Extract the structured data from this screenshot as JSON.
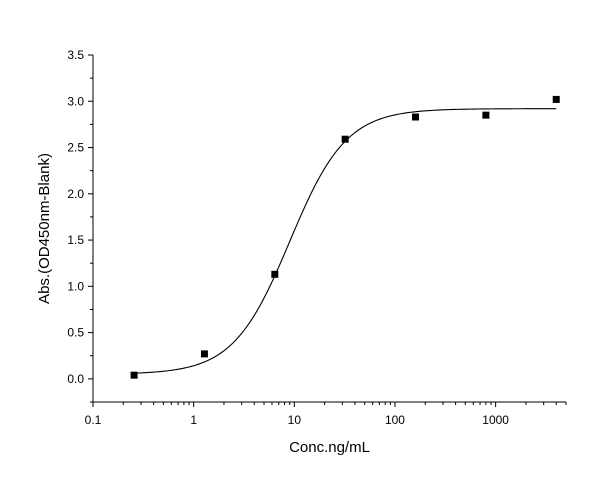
{
  "chart_data": {
    "type": "scatter",
    "title": "",
    "xlabel": "Conc.ng/mL",
    "ylabel": "Abs.(OD450nm-Blank)",
    "x_scale": "log",
    "xlim": [
      0.1,
      5000
    ],
    "ylim": [
      -0.25,
      3.5
    ],
    "x_ticks": [
      0.1,
      1,
      10,
      100,
      1000
    ],
    "x_tick_labels": [
      "0.1",
      "1",
      "10",
      "100",
      "1000"
    ],
    "y_ticks": [
      0.0,
      0.5,
      1.0,
      1.5,
      2.0,
      2.5,
      3.0,
      3.5
    ],
    "y_tick_labels": [
      "0.0",
      "0.5",
      "1.0",
      "1.5",
      "2.0",
      "2.5",
      "3.0",
      "3.5"
    ],
    "grid": false,
    "legend": "none",
    "series": [
      {
        "marker": "square",
        "color": "#000000",
        "points": [
          {
            "x": 0.256,
            "y": 0.04
          },
          {
            "x": 1.28,
            "y": 0.27
          },
          {
            "x": 6.4,
            "y": 1.13
          },
          {
            "x": 32,
            "y": 2.59
          },
          {
            "x": 160,
            "y": 2.83
          },
          {
            "x": 800,
            "y": 2.85
          },
          {
            "x": 4000,
            "y": 3.02
          }
        ]
      }
    ],
    "fit_curve": {
      "model": "4PL",
      "color": "#000000",
      "x_range": [
        0.256,
        4000
      ],
      "bottom": 0.05,
      "top": 2.92,
      "ec50": 9,
      "hill": 1.55
    }
  }
}
